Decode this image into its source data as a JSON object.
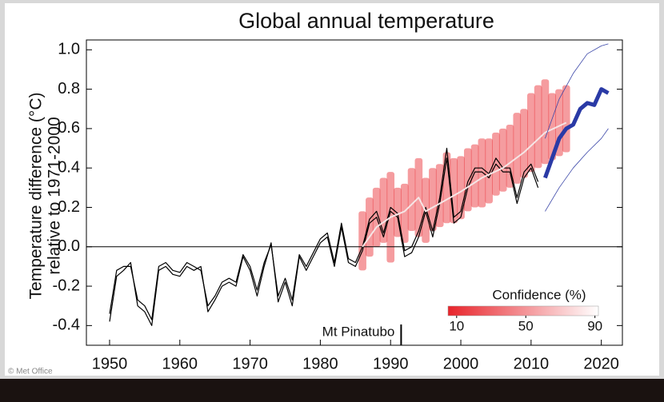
{
  "chart_data": {
    "type": "line",
    "title": "Global annual temperature",
    "ylabel": [
      "Temperature difference (°C)",
      "relative to 1971-2000"
    ],
    "xlim": [
      1946.7,
      2023
    ],
    "ylim": [
      -0.5,
      1.05
    ],
    "xticks": [
      1950,
      1960,
      1970,
      1980,
      1990,
      2000,
      2010,
      2020
    ],
    "yticks": [
      {
        "value": 1,
        "label": "1.0"
      },
      0.8,
      0.6,
      0.4,
      0.2,
      {
        "value": 0,
        "label": "0.0"
      },
      -0.2,
      -0.4
    ],
    "band": {
      "color": "#e8242b",
      "x": [
        1986,
        1987,
        1988,
        1989,
        1990,
        1991,
        1992,
        1993,
        1994,
        1995,
        1996,
        1997,
        1998,
        1999,
        2000,
        2001,
        2002,
        2003,
        2004,
        2005,
        2006,
        2007,
        2008,
        2009,
        2010,
        2011,
        2012,
        2013,
        2014,
        2015
      ],
      "lower": [
        -0.12,
        -0.05,
        0.0,
        0.02,
        -0.08,
        0.05,
        0.02,
        0.08,
        0.05,
        0.02,
        0.08,
        0.1,
        0.12,
        0.12,
        0.14,
        0.18,
        0.2,
        0.2,
        0.22,
        0.26,
        0.28,
        0.3,
        0.32,
        0.35,
        0.38,
        0.4,
        0.42,
        0.44,
        0.46,
        0.48
      ],
      "upper": [
        0.18,
        0.25,
        0.3,
        0.35,
        0.38,
        0.3,
        0.32,
        0.4,
        0.45,
        0.35,
        0.4,
        0.42,
        0.48,
        0.45,
        0.46,
        0.5,
        0.52,
        0.55,
        0.55,
        0.58,
        0.6,
        0.62,
        0.68,
        0.7,
        0.78,
        0.82,
        0.85,
        0.78,
        0.8,
        0.82
      ]
    },
    "series": [
      {
        "color": "#000000",
        "width": 1.2,
        "x": [
          1950,
          1951,
          1952,
          1953,
          1954,
          1955,
          1956,
          1957,
          1958,
          1959,
          1960,
          1961,
          1962,
          1963,
          1964,
          1965,
          1966,
          1967,
          1968,
          1969,
          1970,
          1971,
          1972,
          1973,
          1974,
          1975,
          1976,
          1977,
          1978,
          1979,
          1980,
          1981,
          1982,
          1983,
          1984,
          1985,
          1986,
          1987,
          1988,
          1989,
          1990,
          1991,
          1992,
          1993,
          1994,
          1995,
          1996,
          1997,
          1998,
          1999,
          2000,
          2001,
          2002,
          2003,
          2004,
          2005,
          2006,
          2007,
          2008,
          2009,
          2010,
          2011
        ],
        "values": [
          -0.38,
          -0.15,
          -0.12,
          -0.08,
          -0.3,
          -0.33,
          -0.4,
          -0.12,
          -0.1,
          -0.14,
          -0.15,
          -0.1,
          -0.12,
          -0.1,
          -0.33,
          -0.27,
          -0.2,
          -0.18,
          -0.2,
          -0.05,
          -0.12,
          -0.25,
          -0.1,
          0.02,
          -0.28,
          -0.18,
          -0.3,
          -0.05,
          -0.12,
          -0.05,
          0.02,
          0.05,
          -0.1,
          0.1,
          -0.08,
          -0.1,
          -0.02,
          0.12,
          0.15,
          0.05,
          0.18,
          0.15,
          -0.05,
          -0.03,
          0.05,
          0.18,
          0.05,
          0.22,
          0.45,
          0.12,
          0.15,
          0.3,
          0.38,
          0.38,
          0.35,
          0.42,
          0.38,
          0.38,
          0.22,
          0.35,
          0.4,
          0.3
        ]
      },
      {
        "color": "#000000",
        "width": 1.2,
        "x": [
          1950,
          1951,
          1952,
          1953,
          1954,
          1955,
          1956,
          1957,
          1958,
          1959,
          1960,
          1961,
          1962,
          1963,
          1964,
          1965,
          1966,
          1967,
          1968,
          1969,
          1970,
          1971,
          1972,
          1973,
          1974,
          1975,
          1976,
          1977,
          1978,
          1979,
          1980,
          1981,
          1982,
          1983,
          1984,
          1985,
          1986,
          1987,
          1988,
          1989,
          1990,
          1991,
          1992,
          1993,
          1994,
          1995,
          1996,
          1997,
          1998,
          1999,
          2000,
          2001,
          2002,
          2003,
          2004,
          2005,
          2006,
          2007,
          2008,
          2009,
          2010,
          2011
        ],
        "values": [
          -0.34,
          -0.12,
          -0.1,
          -0.1,
          -0.27,
          -0.3,
          -0.37,
          -0.1,
          -0.08,
          -0.12,
          -0.13,
          -0.08,
          -0.1,
          -0.12,
          -0.3,
          -0.25,
          -0.18,
          -0.16,
          -0.18,
          -0.04,
          -0.1,
          -0.22,
          -0.08,
          0.01,
          -0.25,
          -0.16,
          -0.27,
          -0.04,
          -0.1,
          -0.03,
          0.04,
          0.07,
          -0.08,
          0.12,
          -0.06,
          -0.08,
          0.0,
          0.14,
          0.18,
          0.07,
          0.2,
          0.17,
          -0.02,
          0.0,
          0.08,
          0.2,
          0.08,
          0.25,
          0.5,
          0.15,
          0.18,
          0.33,
          0.4,
          0.4,
          0.37,
          0.45,
          0.4,
          0.4,
          0.25,
          0.38,
          0.42,
          0.33
        ]
      },
      {
        "color": "#f5e6e6",
        "width": 2,
        "x": [
          1986,
          1988,
          1990,
          1992,
          1994,
          1995,
          1997,
          2000,
          2003,
          2006,
          2009,
          2012,
          2015
        ],
        "values": [
          0.0,
          0.1,
          0.15,
          0.18,
          0.25,
          0.18,
          0.22,
          0.28,
          0.35,
          0.4,
          0.48,
          0.58,
          0.63
        ]
      },
      {
        "color": "#2a3aa6",
        "width": 5,
        "x": [
          2012,
          2013,
          2014,
          2015,
          2016,
          2017,
          2018,
          2019,
          2020,
          2021
        ],
        "values": [
          0.35,
          0.45,
          0.55,
          0.6,
          0.62,
          0.7,
          0.73,
          0.72,
          0.8,
          0.78
        ]
      },
      {
        "color": "#3a46a8",
        "width": 0.8,
        "x": [
          2012,
          2014,
          2016,
          2018,
          2020,
          2021
        ],
        "values": [
          0.55,
          0.75,
          0.88,
          0.98,
          1.02,
          1.03
        ]
      },
      {
        "color": "#3a46a8",
        "width": 0.8,
        "x": [
          2012,
          2014,
          2016,
          2018,
          2020,
          2021
        ],
        "values": [
          0.18,
          0.3,
          0.4,
          0.48,
          0.55,
          0.6
        ]
      }
    ],
    "annotation": {
      "text": "Mt Pinatubo",
      "x": 1991.5
    },
    "colorbar": {
      "title": "Confidence (%)",
      "lim": [
        5,
        92
      ],
      "ticks": [
        10,
        50,
        90
      ],
      "colors": [
        "#e8242b",
        "#ffffff"
      ]
    },
    "credit": "© Met Office"
  }
}
